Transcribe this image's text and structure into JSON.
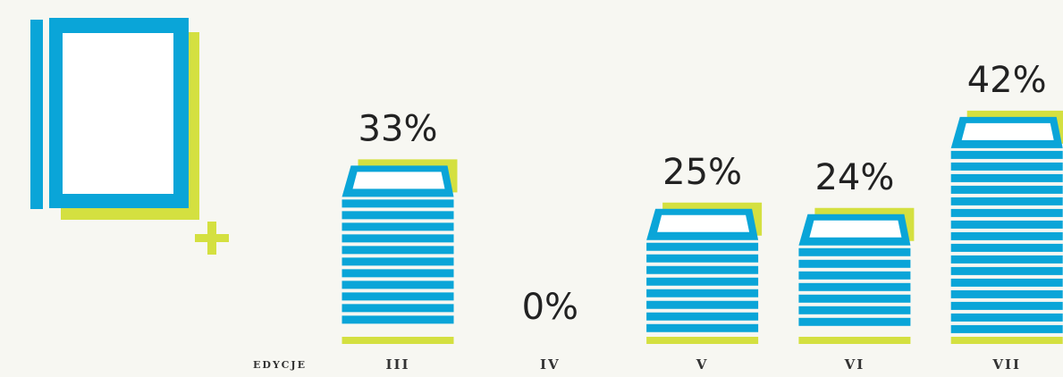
{
  "chart_data": {
    "type": "bar",
    "x_label": "EDYCJE",
    "categories": [
      "III",
      "IV",
      "V",
      "VI",
      "VII"
    ],
    "values": [
      33,
      0,
      25,
      24,
      42
    ],
    "value_labels": [
      "33%",
      "0%",
      "25%",
      "24%",
      "42%"
    ],
    "color": "#0aa5d8",
    "accent_color": "#d4e040"
  }
}
